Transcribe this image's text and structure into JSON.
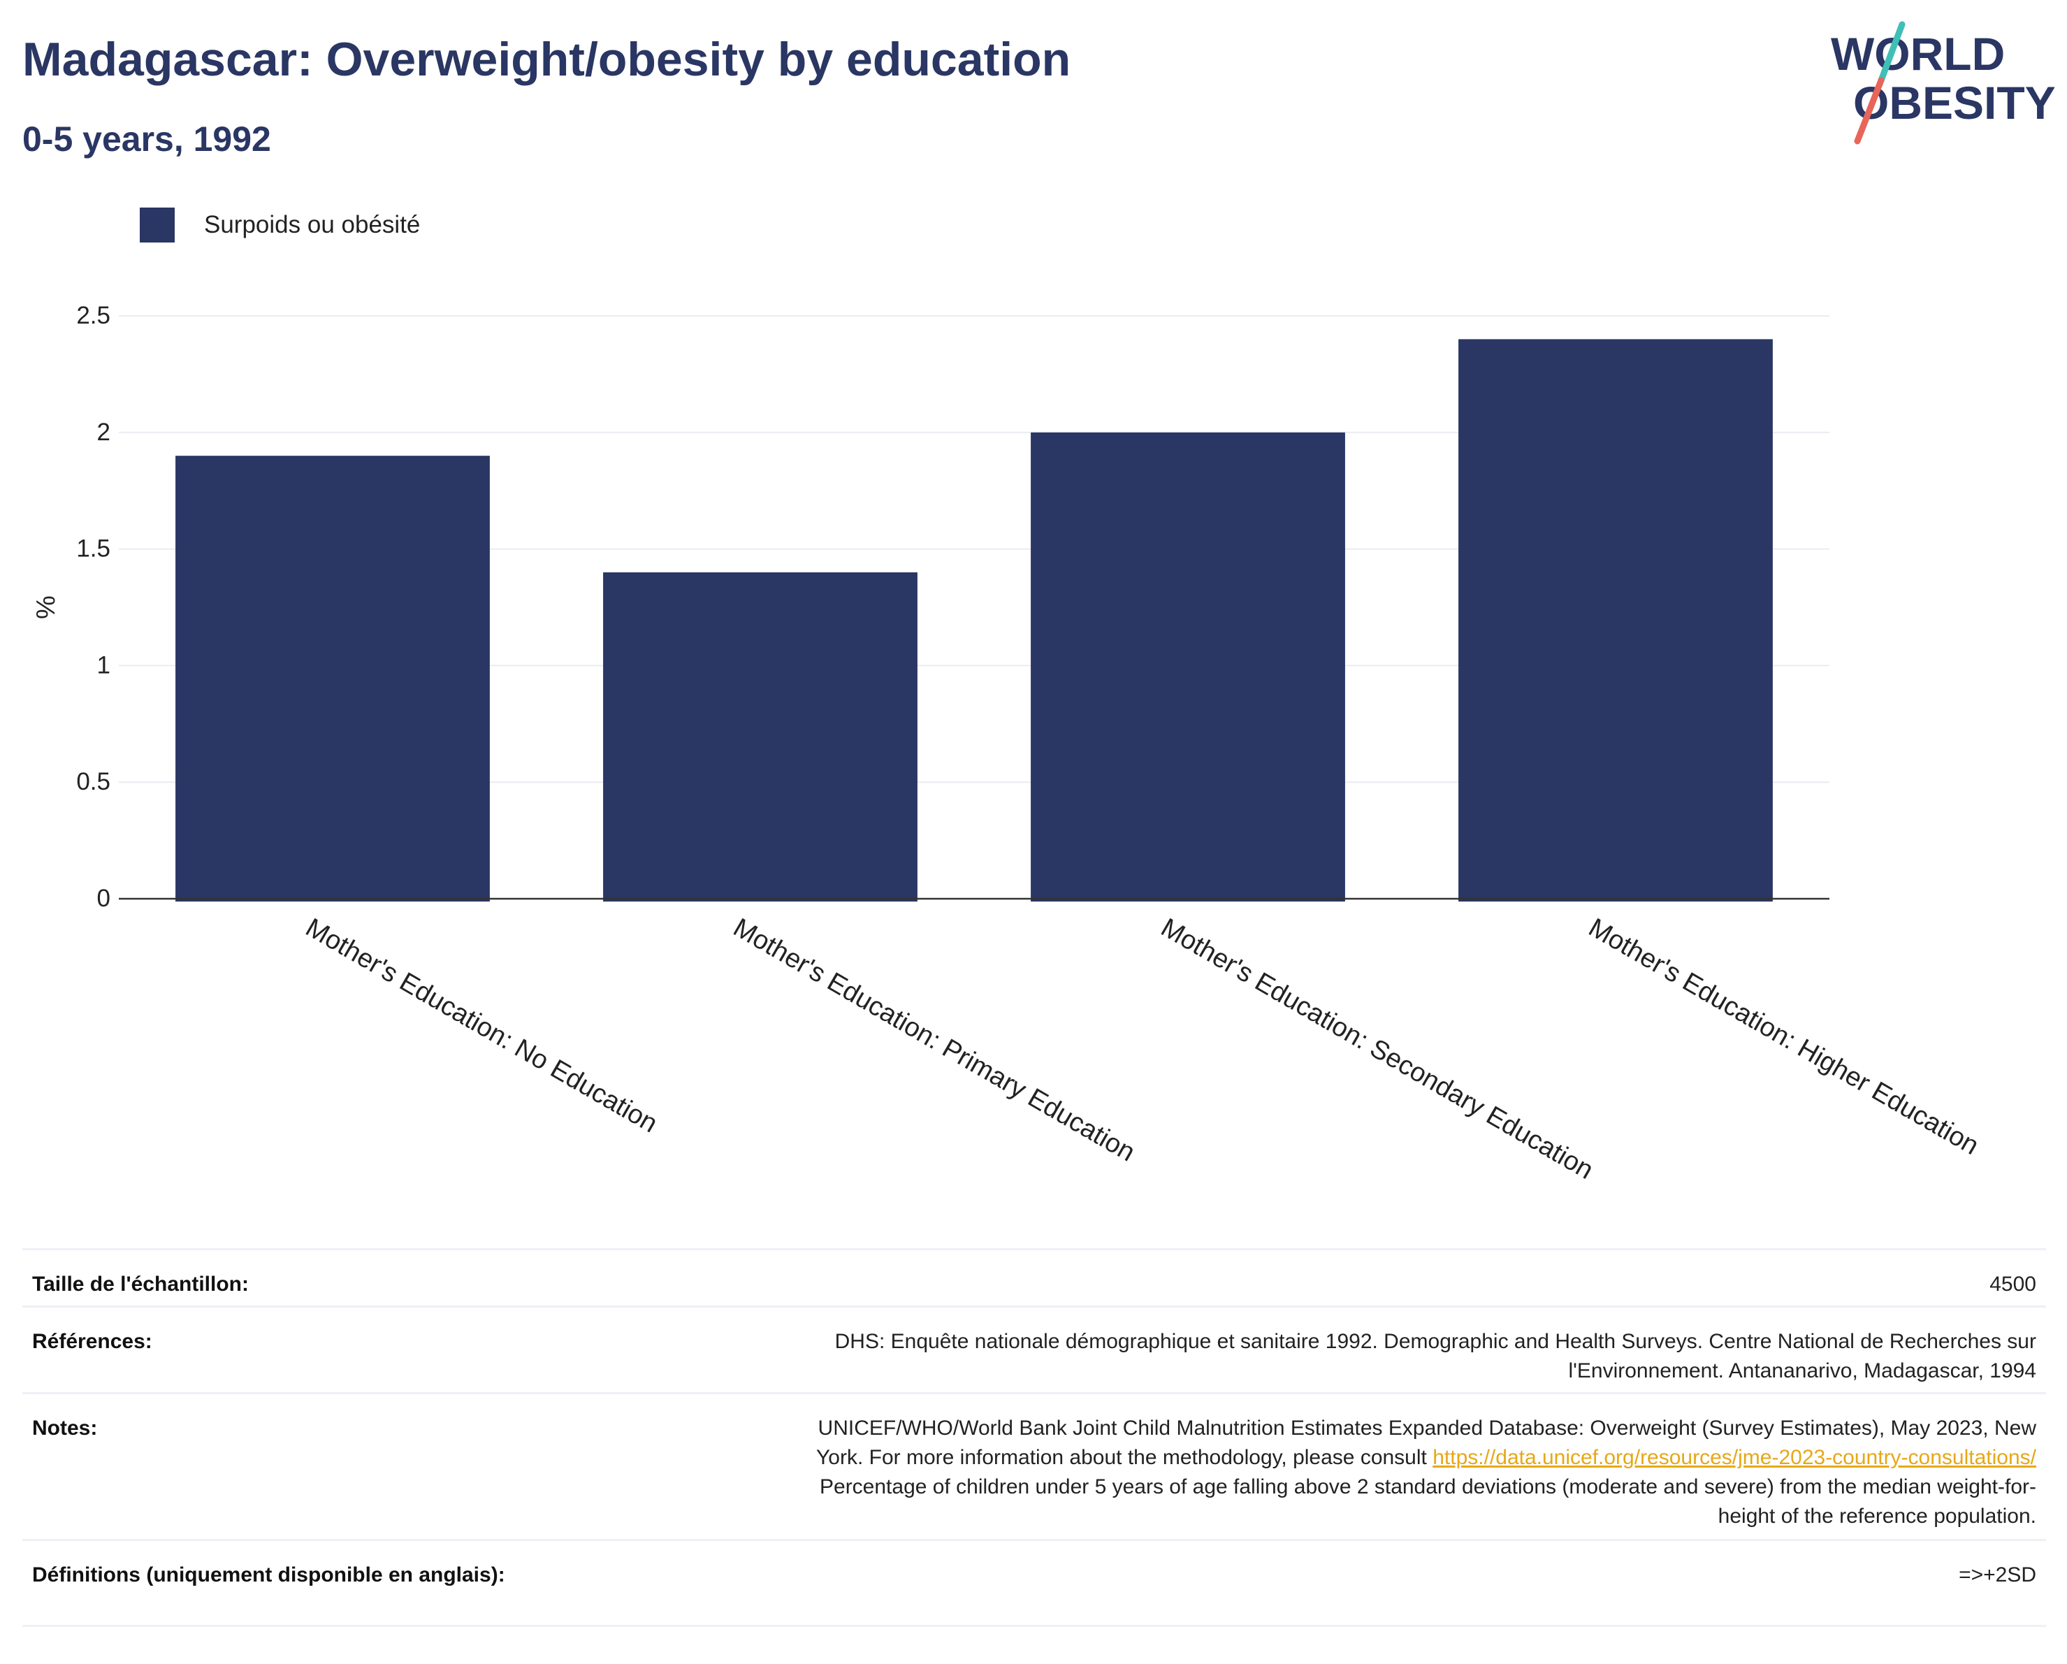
{
  "header": {
    "title": "Madagascar: Overweight/obesity by education",
    "subtitle": "0-5 years, 1992"
  },
  "logo": {
    "line1": "WORLD",
    "line2": "OBESITY"
  },
  "colors": {
    "bar": "#2a3663",
    "title": "#2a3663",
    "logo_text": "#2a3663",
    "logo_slash_top": "#3fbfb6",
    "logo_slash_bottom": "#e8655a",
    "link": "#e6a817"
  },
  "chart_data": {
    "type": "bar",
    "categories": [
      "Mother's Education: No Education",
      "Mother's Education: Primary Education",
      "Mother's Education: Secondary Education",
      "Mother's Education: Higher Education"
    ],
    "series": [
      {
        "name": "Surpoids ou obésité",
        "values": [
          1.9,
          1.4,
          2.0,
          2.4
        ]
      }
    ],
    "ylabel": "%",
    "ylim": [
      0,
      2.5
    ],
    "yticks": [
      0,
      0.5,
      1,
      1.5,
      2,
      2.5
    ],
    "ytick_labels": [
      "0",
      "0.5",
      "1",
      "1.5",
      "2",
      "2.5"
    ],
    "grid": true,
    "legend_position": "top-left"
  },
  "meta": {
    "sample_size_label": "Taille de l'échantillon:",
    "sample_size_value": "4500",
    "references_label": "Références:",
    "references_line1": "DHS: Enquête nationale démographique et sanitaire 1992. Demographic and Health Surveys. Centre National de Recherches sur",
    "references_line2": "l'Environnement. Antananarivo, Madagascar, 1994",
    "notes_label": "Notes:",
    "notes_line1": "UNICEF/WHO/World Bank Joint Child Malnutrition Estimates Expanded Database: Overweight (Survey Estimates), May 2023, New",
    "notes_line2_prefix": "York. For more information about the methodology, please consult",
    "notes_link": "https://data.unicef.org/resources/jme-2023-country-consultations/",
    "notes_line3": "Percentage of children under 5 years of age falling above 2 standard deviations (moderate and severe) from the median weight-for-",
    "notes_line4": "height of the reference population.",
    "definitions_label": "Définitions (uniquement disponible en anglais):",
    "definitions_value": "=>+2SD"
  }
}
